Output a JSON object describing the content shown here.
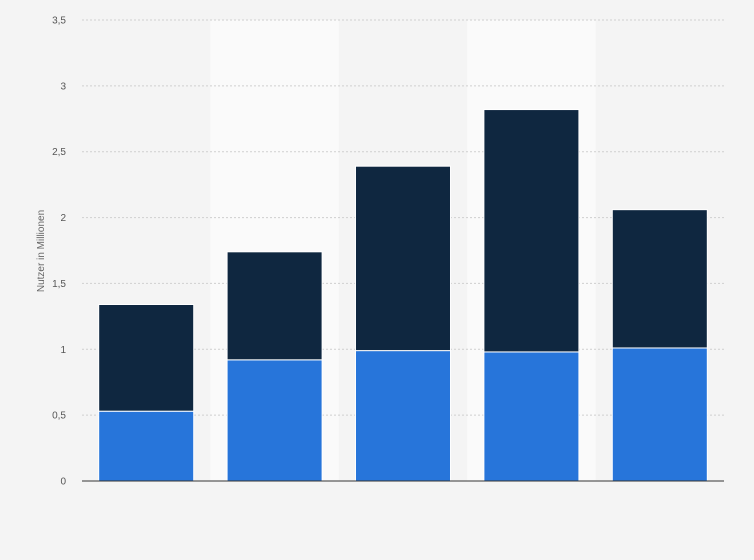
{
  "chart_data": {
    "type": "bar",
    "stacked": true,
    "title": "",
    "xlabel": "",
    "ylabel": "Nutzer in Millionen",
    "ylim": [
      0,
      3.5
    ],
    "yticks": [
      0,
      0.5,
      1,
      1.5,
      2,
      2.5,
      3,
      3.5
    ],
    "ytick_labels": [
      "0",
      "0,5",
      "1",
      "1,5",
      "2",
      "2,5",
      "3",
      "3,5"
    ],
    "categories": [
      "",
      "",
      "",
      "",
      ""
    ],
    "grid": true,
    "legend": "none",
    "series": [
      {
        "color": "#2775da",
        "values": [
          0.53,
          0.92,
          0.99,
          0.98,
          1.01
        ]
      },
      {
        "color": "#0f2740",
        "values": [
          0.81,
          0.82,
          1.4,
          1.84,
          1.05
        ]
      }
    ]
  }
}
